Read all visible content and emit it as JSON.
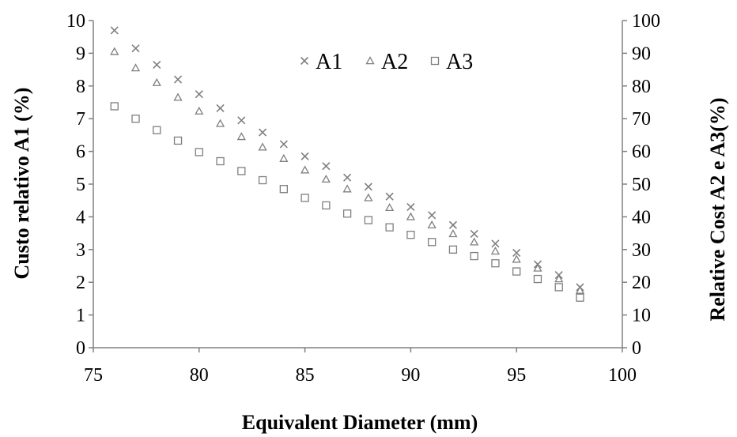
{
  "chart_data": {
    "type": "scatter",
    "title": "",
    "xlabel": "Equivalent Diameter (mm)",
    "ylabel_left": "Custo relativo A1 (%)",
    "ylabel_right": "Relative Cost A2 e A3(%)",
    "xlim": [
      75,
      100
    ],
    "ylim_left": [
      0,
      10
    ],
    "ylim_right": [
      0,
      100
    ],
    "x_ticks": [
      75,
      80,
      85,
      90,
      95,
      100
    ],
    "y_left_ticks": [
      0,
      1,
      2,
      3,
      4,
      5,
      6,
      7,
      8,
      9,
      10
    ],
    "y_right_ticks": [
      0,
      10,
      20,
      30,
      40,
      50,
      60,
      70,
      80,
      90,
      100
    ],
    "grid": false,
    "legend_position": "top-center",
    "x": [
      76,
      77,
      78,
      79,
      80,
      81,
      82,
      83,
      84,
      85,
      86,
      87,
      88,
      89,
      90,
      91,
      92,
      93,
      94,
      95,
      96,
      97,
      98
    ],
    "series": [
      {
        "name": "A1",
        "axis": "left",
        "marker": "x",
        "color": "#7f7f7f",
        "values": [
          9.7,
          9.15,
          8.65,
          8.2,
          7.75,
          7.32,
          6.95,
          6.58,
          6.22,
          5.85,
          5.55,
          5.2,
          4.92,
          4.62,
          4.3,
          4.05,
          3.75,
          3.48,
          3.18,
          2.9,
          2.55,
          2.22,
          1.85
        ]
      },
      {
        "name": "A2",
        "axis": "right",
        "marker": "triangle",
        "color": "#7f7f7f",
        "values": [
          90.5,
          85.5,
          81,
          76.5,
          72.3,
          68.5,
          64.5,
          61.3,
          57.8,
          54.3,
          51.5,
          48.5,
          45.8,
          42.8,
          40,
          37.5,
          34.8,
          32.3,
          29.5,
          27,
          24.3,
          21,
          17.5
        ]
      },
      {
        "name": "A3",
        "axis": "right",
        "marker": "square",
        "color": "#7f7f7f",
        "values": [
          73.8,
          70,
          66.5,
          63.3,
          59.8,
          57,
          54,
          51.2,
          48.5,
          45.8,
          43.5,
          41,
          39,
          36.8,
          34.5,
          32.3,
          30,
          28,
          25.8,
          23.3,
          21,
          18.5,
          15.3
        ]
      }
    ]
  }
}
